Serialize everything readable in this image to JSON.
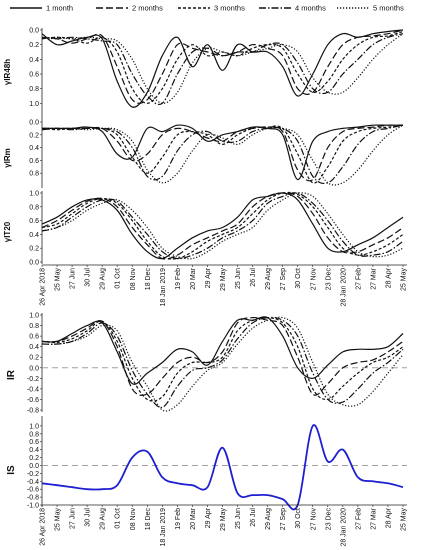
{
  "legend": {
    "placement": "top",
    "items": [
      {
        "label": "1 month",
        "dash": "solid"
      },
      {
        "label": "2 months",
        "dash": "long-dash"
      },
      {
        "label": "3 months",
        "dash": "short-dash"
      },
      {
        "label": "4 months",
        "dash": "dash-dot"
      },
      {
        "label": "5 months",
        "dash": "dotted"
      }
    ]
  },
  "x_ticks": [
    "26 Apr 2018",
    "25 May",
    "27 Jun",
    "30 Jul",
    "29 Aug",
    "01 Oct",
    "08 Nov",
    "18 Dec",
    "18 Jan 2019",
    "19 Feb",
    "20 Mar",
    "29 Apr",
    "29 May",
    "25 Jun",
    "26 Jul",
    "29 Aug",
    "27 Sep",
    "30 Oct",
    "27 Nov",
    "23 Dec",
    "28 Jan 2020",
    "27 Feb",
    "27 Mar",
    "28 Apr",
    "25 May"
  ],
  "colors": {
    "line": "#111111",
    "is_line": "#1f1fd2",
    "zero_line": "#a0a0a0",
    "axis": "#222222"
  },
  "chart_data": [
    {
      "type": "line",
      "ylabel": "γIR48h",
      "ylim": [
        0,
        1.2
      ],
      "y_inverted": true,
      "yticks": [
        "0.0",
        "0.2",
        "0.4",
        "0.6",
        "0.8",
        "1.0"
      ],
      "ytick_values": [
        0,
        0.2,
        0.4,
        0.6,
        0.8,
        1.0
      ],
      "series": [
        {
          "name": "1 month",
          "values": [
            0.05,
            0.2,
            0.15,
            0.1,
            0.12,
            0.7,
            1.05,
            0.85,
            0.35,
            0.1,
            0.5,
            0.2,
            0.55,
            0.2,
            0.3,
            0.3,
            0.5,
            0.9,
            0.6,
            0.2,
            0.05,
            0.1,
            0.05,
            0.02,
            0.0
          ]
        },
        {
          "name": "2 months",
          "values": [
            0.1,
            0.12,
            0.18,
            0.12,
            0.08,
            0.5,
            0.95,
            0.95,
            0.6,
            0.2,
            0.25,
            0.3,
            0.35,
            0.3,
            0.2,
            0.25,
            0.35,
            0.8,
            0.85,
            0.5,
            0.2,
            0.1,
            0.08,
            0.05,
            0.0
          ]
        },
        {
          "name": "3 months",
          "values": [
            0.12,
            0.1,
            0.12,
            0.18,
            0.1,
            0.3,
            0.8,
            1.0,
            0.8,
            0.4,
            0.2,
            0.35,
            0.3,
            0.35,
            0.25,
            0.2,
            0.25,
            0.6,
            0.85,
            0.7,
            0.4,
            0.2,
            0.1,
            0.08,
            0.02
          ]
        },
        {
          "name": "4 months",
          "values": [
            0.1,
            0.12,
            0.1,
            0.12,
            0.15,
            0.2,
            0.6,
            0.9,
            1.0,
            0.6,
            0.3,
            0.25,
            0.35,
            0.3,
            0.3,
            0.2,
            0.2,
            0.45,
            0.8,
            0.85,
            0.6,
            0.4,
            0.2,
            0.1,
            0.05
          ]
        },
        {
          "name": "5 months",
          "values": [
            0.12,
            0.1,
            0.12,
            0.1,
            0.12,
            0.15,
            0.4,
            0.8,
            1.0,
            0.85,
            0.45,
            0.25,
            0.3,
            0.35,
            0.3,
            0.25,
            0.2,
            0.3,
            0.65,
            0.85,
            0.85,
            0.65,
            0.4,
            0.2,
            0.05
          ]
        }
      ]
    },
    {
      "type": "line",
      "ylabel": "γIRm",
      "ylim": [
        0,
        1.0
      ],
      "y_inverted": true,
      "yticks": [
        "0.0",
        "0.2",
        "0.4",
        "0.6",
        "0.8"
      ],
      "ytick_values": [
        0,
        0.2,
        0.4,
        0.6,
        0.8
      ],
      "series": [
        {
          "name": "1 month",
          "values": [
            0.1,
            0.1,
            0.1,
            0.08,
            0.15,
            0.5,
            0.55,
            0.1,
            0.15,
            0.05,
            0.1,
            0.3,
            0.2,
            0.15,
            0.08,
            0.1,
            0.2,
            0.9,
            0.3,
            0.15,
            0.1,
            0.08,
            0.05,
            0.05,
            0.05
          ]
        },
        {
          "name": "2 months",
          "values": [
            0.12,
            0.1,
            0.1,
            0.1,
            0.1,
            0.3,
            0.6,
            0.5,
            0.2,
            0.1,
            0.15,
            0.25,
            0.3,
            0.15,
            0.1,
            0.08,
            0.15,
            0.75,
            0.9,
            0.4,
            0.15,
            0.1,
            0.08,
            0.05,
            0.05
          ]
        },
        {
          "name": "3 months",
          "values": [
            0.1,
            0.12,
            0.1,
            0.1,
            0.1,
            0.2,
            0.55,
            0.8,
            0.55,
            0.2,
            0.15,
            0.2,
            0.35,
            0.2,
            0.1,
            0.08,
            0.1,
            0.5,
            0.95,
            0.7,
            0.3,
            0.15,
            0.1,
            0.08,
            0.05
          ]
        },
        {
          "name": "4 months",
          "values": [
            0.1,
            0.1,
            0.12,
            0.1,
            0.1,
            0.15,
            0.4,
            0.85,
            0.85,
            0.45,
            0.2,
            0.15,
            0.3,
            0.3,
            0.15,
            0.1,
            0.1,
            0.3,
            0.85,
            0.95,
            0.7,
            0.35,
            0.15,
            0.1,
            0.05
          ]
        },
        {
          "name": "5 months",
          "values": [
            0.1,
            0.1,
            0.1,
            0.12,
            0.1,
            0.12,
            0.3,
            0.75,
            0.95,
            0.8,
            0.45,
            0.2,
            0.25,
            0.35,
            0.2,
            0.1,
            0.1,
            0.2,
            0.6,
            0.95,
            0.95,
            0.75,
            0.45,
            0.2,
            0.05
          ]
        }
      ]
    },
    {
      "type": "line",
      "ylabel": "γIT20",
      "ylim": [
        0,
        1.0
      ],
      "y_inverted": false,
      "yticks": [
        "0.0",
        "0.2",
        "0.4",
        "0.6",
        "0.8",
        "1.0"
      ],
      "ytick_values": [
        0,
        0.2,
        0.4,
        0.6,
        0.8,
        1.0
      ],
      "series": [
        {
          "name": "1 month",
          "values": [
            0.55,
            0.65,
            0.8,
            0.9,
            0.9,
            0.75,
            0.4,
            0.15,
            0.05,
            0.2,
            0.35,
            0.45,
            0.5,
            0.65,
            0.9,
            0.95,
            1.0,
            0.9,
            0.55,
            0.2,
            0.15,
            0.25,
            0.35,
            0.5,
            0.65
          ]
        },
        {
          "name": "2 months",
          "values": [
            0.5,
            0.6,
            0.75,
            0.88,
            0.92,
            0.8,
            0.5,
            0.25,
            0.05,
            0.1,
            0.25,
            0.35,
            0.45,
            0.55,
            0.8,
            0.95,
            1.0,
            0.95,
            0.7,
            0.35,
            0.15,
            0.15,
            0.25,
            0.35,
            0.5
          ]
        },
        {
          "name": "3 months",
          "values": [
            0.5,
            0.55,
            0.7,
            0.85,
            0.92,
            0.85,
            0.6,
            0.3,
            0.08,
            0.05,
            0.15,
            0.3,
            0.4,
            0.5,
            0.7,
            0.9,
            1.0,
            0.98,
            0.8,
            0.5,
            0.2,
            0.1,
            0.15,
            0.25,
            0.4
          ]
        },
        {
          "name": "4 months",
          "values": [
            0.45,
            0.5,
            0.65,
            0.8,
            0.9,
            0.88,
            0.65,
            0.4,
            0.15,
            0.05,
            0.1,
            0.2,
            0.35,
            0.45,
            0.6,
            0.85,
            0.95,
            1.0,
            0.85,
            0.6,
            0.3,
            0.1,
            0.1,
            0.15,
            0.3
          ]
        },
        {
          "name": "5 months",
          "values": [
            0.45,
            0.5,
            0.6,
            0.75,
            0.85,
            0.9,
            0.75,
            0.5,
            0.2,
            0.08,
            0.05,
            0.15,
            0.3,
            0.4,
            0.5,
            0.75,
            0.9,
            1.0,
            0.95,
            0.7,
            0.4,
            0.15,
            0.08,
            0.1,
            0.2
          ]
        }
      ]
    },
    {
      "type": "line",
      "ylabel": "IR",
      "ylim": [
        -0.8,
        1.0
      ],
      "y_inverted": false,
      "zero_line": true,
      "yticks": [
        "1.0",
        "0.8",
        "0.6",
        "0.4",
        "0.2",
        "0.0",
        "-0.2",
        "-0.4",
        "-0.6",
        "-0.8"
      ],
      "ytick_values": [
        1.0,
        0.8,
        0.6,
        0.4,
        0.2,
        0.0,
        -0.2,
        -0.4,
        -0.6,
        -0.8
      ],
      "series": [
        {
          "name": "1 month",
          "values": [
            0.5,
            0.5,
            0.65,
            0.8,
            0.85,
            0.3,
            -0.3,
            -0.1,
            0.1,
            0.35,
            0.3,
            0.05,
            0.5,
            0.9,
            0.9,
            0.95,
            0.6,
            0.0,
            -0.2,
            0.05,
            0.3,
            0.35,
            0.35,
            0.4,
            0.65
          ]
        },
        {
          "name": "2 months",
          "values": [
            0.5,
            0.5,
            0.6,
            0.75,
            0.88,
            0.4,
            -0.4,
            -0.5,
            -0.2,
            0.1,
            0.2,
            0.1,
            0.3,
            0.85,
            0.95,
            0.9,
            0.8,
            0.2,
            -0.5,
            -0.3,
            0.0,
            0.1,
            0.15,
            0.3,
            0.5
          ]
        },
        {
          "name": "3 months",
          "values": [
            0.5,
            0.48,
            0.55,
            0.7,
            0.88,
            0.5,
            -0.2,
            -0.6,
            -0.55,
            -0.1,
            0.1,
            0.1,
            0.2,
            0.7,
            0.9,
            0.95,
            0.85,
            0.4,
            -0.4,
            -0.6,
            -0.35,
            -0.1,
            0.1,
            0.2,
            0.4
          ]
        },
        {
          "name": "4 months",
          "values": [
            0.45,
            0.45,
            0.5,
            0.65,
            0.85,
            0.6,
            -0.05,
            -0.5,
            -0.75,
            -0.35,
            -0.05,
            0.0,
            0.15,
            0.55,
            0.85,
            0.95,
            0.9,
            0.6,
            -0.1,
            -0.6,
            -0.65,
            -0.4,
            -0.1,
            0.1,
            0.35
          ]
        },
        {
          "name": "5 months",
          "values": [
            0.45,
            0.45,
            0.5,
            0.6,
            0.8,
            0.7,
            0.1,
            -0.35,
            -0.8,
            -0.7,
            -0.35,
            -0.05,
            0.1,
            0.45,
            0.75,
            0.9,
            0.95,
            0.75,
            0.1,
            -0.5,
            -0.7,
            -0.7,
            -0.45,
            -0.1,
            0.25
          ]
        }
      ]
    },
    {
      "type": "line",
      "ylabel": "IS",
      "ylim": [
        -1.0,
        1.2
      ],
      "y_inverted": false,
      "zero_line": true,
      "yticks": [
        "1.0",
        "0.8",
        "0.6",
        "0.4",
        "0.2",
        "0.0",
        "-0.2",
        "-0.4",
        "-0.6",
        "-0.8",
        "-1.0"
      ],
      "ytick_values": [
        1.0,
        0.8,
        0.6,
        0.4,
        0.2,
        0.0,
        -0.2,
        -0.4,
        -0.6,
        -0.8,
        -1.0
      ],
      "series": [
        {
          "name": "",
          "values": [
            -0.45,
            -0.5,
            -0.55,
            -0.6,
            -0.6,
            -0.5,
            0.2,
            0.35,
            -0.3,
            -0.45,
            -0.5,
            -0.55,
            0.45,
            -0.7,
            -0.75,
            -0.75,
            -0.85,
            -1.0,
            1.0,
            0.1,
            0.4,
            -0.3,
            -0.4,
            -0.45,
            -0.55
          ]
        }
      ]
    }
  ]
}
